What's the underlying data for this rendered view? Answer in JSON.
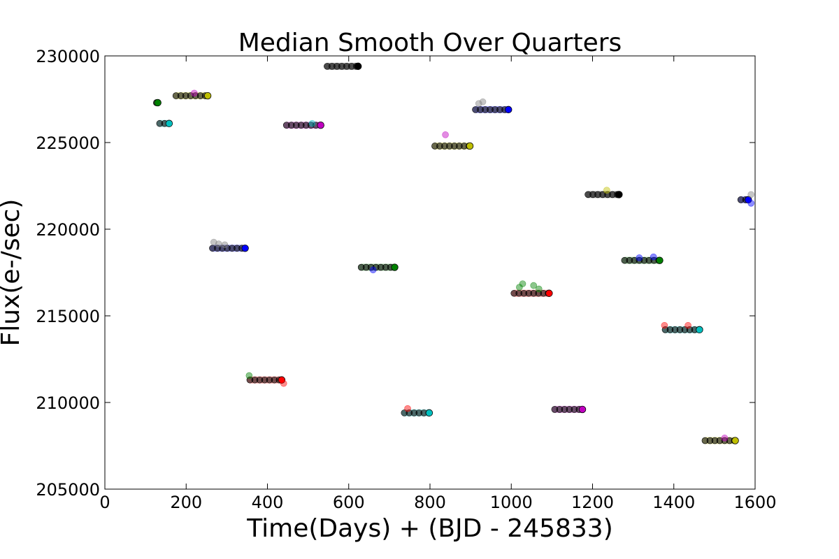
{
  "chart_data": {
    "type": "scatter",
    "title": "Median Smooth Over Quarters",
    "xlabel": "Time(Days) + (BJD - 245833)",
    "ylabel": "Flux(e-/sec)",
    "xlim": [
      0,
      1600
    ],
    "ylim": [
      205000,
      230000
    ],
    "xticks": [
      "0",
      "200",
      "400",
      "600",
      "800",
      "1000",
      "1200",
      "1400",
      "1600"
    ],
    "yticks": [
      "205000",
      "210000",
      "215000",
      "220000",
      "225000",
      "230000"
    ],
    "grid": false,
    "legend": "none",
    "series": [
      {
        "x_start": 120,
        "x_end": 137,
        "y": 227300,
        "color": "#008000"
      },
      {
        "x_start": 128,
        "x_end": 165,
        "y": 226100,
        "color": "#00bfbf"
      },
      {
        "x_start": 168,
        "x_end": 260,
        "y": 227700,
        "color": "#bfbf00"
      },
      {
        "x_start": 258,
        "x_end": 352,
        "y": 218900,
        "color": "#0000ff"
      },
      {
        "x_start": 350,
        "x_end": 442,
        "y": 211300,
        "color": "#ff0000"
      },
      {
        "x_start": 440,
        "x_end": 538,
        "y": 226000,
        "color": "#bf00bf"
      },
      {
        "x_start": 540,
        "x_end": 630,
        "y": 229400,
        "color": "#000000"
      },
      {
        "x_start": 624,
        "x_end": 720,
        "y": 217800,
        "color": "#008000"
      },
      {
        "x_start": 730,
        "x_end": 805,
        "y": 209400,
        "color": "#00bfbf"
      },
      {
        "x_start": 805,
        "x_end": 905,
        "y": 224800,
        "color": "#bfbf00"
      },
      {
        "x_start": 905,
        "x_end": 1000,
        "y": 226900,
        "color": "#0000ff"
      },
      {
        "x_start": 1000,
        "x_end": 1100,
        "y": 216300,
        "color": "#ff0000"
      },
      {
        "x_start": 1100,
        "x_end": 1182,
        "y": 209600,
        "color": "#bf00bf"
      },
      {
        "x_start": 1182,
        "x_end": 1272,
        "y": 222000,
        "color": "#000000"
      },
      {
        "x_start": 1272,
        "x_end": 1372,
        "y": 218200,
        "color": "#008000"
      },
      {
        "x_start": 1372,
        "x_end": 1470,
        "y": 214200,
        "color": "#00bfbf"
      },
      {
        "x_start": 1470,
        "x_end": 1558,
        "y": 207800,
        "color": "#bfbf00"
      },
      {
        "x_start": 1558,
        "x_end": 1590,
        "y": 221700,
        "color": "#0000ff"
      }
    ],
    "outliers": [
      {
        "x": 220,
        "y": 227850,
        "color": "#bf00bf"
      },
      {
        "x": 268,
        "y": 219250,
        "color": "#808080"
      },
      {
        "x": 280,
        "y": 219150,
        "color": "#808080"
      },
      {
        "x": 295,
        "y": 219100,
        "color": "#808080"
      },
      {
        "x": 355,
        "y": 211550,
        "color": "#008000"
      },
      {
        "x": 440,
        "y": 211100,
        "color": "#ff0000"
      },
      {
        "x": 510,
        "y": 226100,
        "color": "#00bfbf"
      },
      {
        "x": 660,
        "y": 217650,
        "color": "#0000ff"
      },
      {
        "x": 745,
        "y": 209650,
        "color": "#ff0000"
      },
      {
        "x": 838,
        "y": 225450,
        "color": "#bf00bf"
      },
      {
        "x": 920,
        "y": 227250,
        "color": "#808080"
      },
      {
        "x": 930,
        "y": 227350,
        "color": "#808080"
      },
      {
        "x": 1020,
        "y": 216650,
        "color": "#008000"
      },
      {
        "x": 1028,
        "y": 216850,
        "color": "#008000"
      },
      {
        "x": 1055,
        "y": 216750,
        "color": "#008000"
      },
      {
        "x": 1068,
        "y": 216550,
        "color": "#008000"
      },
      {
        "x": 1235,
        "y": 222250,
        "color": "#bfbf00"
      },
      {
        "x": 1315,
        "y": 218350,
        "color": "#0000ff"
      },
      {
        "x": 1350,
        "y": 218400,
        "color": "#0000ff"
      },
      {
        "x": 1377,
        "y": 214450,
        "color": "#ff0000"
      },
      {
        "x": 1435,
        "y": 214450,
        "color": "#ff0000"
      },
      {
        "x": 1525,
        "y": 207950,
        "color": "#bf00bf"
      },
      {
        "x": 1590,
        "y": 222000,
        "color": "#808080"
      },
      {
        "x": 1590,
        "y": 221500,
        "color": "#0000ff"
      }
    ]
  }
}
